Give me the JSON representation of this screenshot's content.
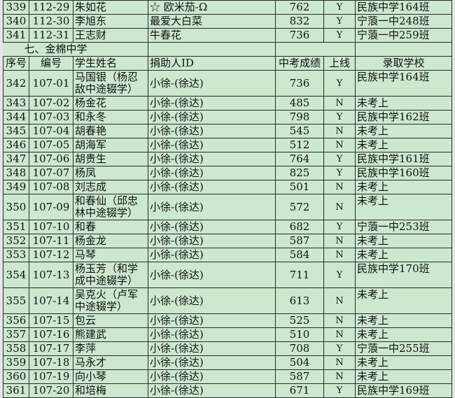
{
  "colors": {
    "cell_background": "#cce8cf",
    "grid_line": "#2a2a2a"
  },
  "rows_before": [
    {
      "no": "339",
      "code": "112-29",
      "name": "朱如花",
      "donor": "☆ 欧米茄-Ω",
      "score": "762",
      "passed": "Y",
      "school": "民族中学164班"
    },
    {
      "no": "340",
      "code": "112-30",
      "name": "李旭东",
      "donor": "最爱大白菜",
      "score": "832",
      "passed": "Y",
      "school": "宁蒗一中248班"
    },
    {
      "no": "341",
      "code": "112-31",
      "name": "王志财",
      "donor": "牛春花",
      "score": "736",
      "passed": "Y",
      "school": "宁蒗一中259班"
    }
  ],
  "section_title": "七、金棉中学",
  "headers": {
    "no": "序号",
    "code": "编号",
    "name": "学生姓名",
    "donor": "捐助人ID",
    "score": "中考成绩",
    "passed": "上线",
    "school": "录取学校"
  },
  "rows": [
    {
      "no": "342",
      "code": "107-01",
      "name": "马国银（杨忍敌中途辍学）",
      "donor": "小徐-(徐达)",
      "score": "736",
      "passed": "Y",
      "school": "民族中学164班",
      "tall": true
    },
    {
      "no": "343",
      "code": "107-02",
      "name": "杨金花",
      "donor": "小徐-(徐达)",
      "score": "485",
      "passed": "N",
      "school": "未考上"
    },
    {
      "no": "344",
      "code": "107-03",
      "name": "和永冬",
      "donor": "小徐-(徐达)",
      "score": "798",
      "passed": "Y",
      "school": "民族中学162班"
    },
    {
      "no": "345",
      "code": "107-04",
      "name": "胡春艳",
      "donor": "小徐-(徐达)",
      "score": "545",
      "passed": "N",
      "school": "未考上"
    },
    {
      "no": "346",
      "code": "107-05",
      "name": "胡海军",
      "donor": "小徐-(徐达)",
      "score": "512",
      "passed": "N",
      "school": "未考上"
    },
    {
      "no": "347",
      "code": "107-06",
      "name": "胡贵生",
      "donor": "小徐-(徐达)",
      "score": "764",
      "passed": "Y",
      "school": "民族中学161班"
    },
    {
      "no": "348",
      "code": "107-07",
      "name": "杨凤",
      "donor": "小徐-(徐达)",
      "score": "825",
      "passed": "Y",
      "school": "民族中学160班"
    },
    {
      "no": "349",
      "code": "107-08",
      "name": "刘志成",
      "donor": "小徐-(徐达)",
      "score": "501",
      "passed": "N",
      "school": "未考上"
    },
    {
      "no": "350",
      "code": "107-09",
      "name": "和春仙（邱忠林中途辍学）",
      "donor": "小徐-(徐达)",
      "score": "572",
      "passed": "N",
      "school": "未考上",
      "tall": true
    },
    {
      "no": "351",
      "code": "107-10",
      "name": "和春",
      "donor": "小徐-(徐达)",
      "score": "682",
      "passed": "Y",
      "school": "宁蒗一中253班"
    },
    {
      "no": "352",
      "code": "107-11",
      "name": "杨金龙",
      "donor": "小徐-(徐达)",
      "score": "587",
      "passed": "N",
      "school": "未考上"
    },
    {
      "no": "353",
      "code": "107-12",
      "name": "马琴",
      "donor": "小徐-(徐达)",
      "score": "584",
      "passed": "N",
      "school": "未考上"
    },
    {
      "no": "354",
      "code": "107-13",
      "name": "杨玉芳（和学成中途辍学）",
      "donor": "小徐-(徐达)",
      "score": "711",
      "passed": "Y",
      "school": "民族中学170班",
      "tall": true
    },
    {
      "no": "355",
      "code": "107-14",
      "name": "吴克火（卢军中途辍学）",
      "donor": "小徐-(徐达)",
      "score": "613",
      "passed": "N",
      "school": "未考上",
      "tall": true
    },
    {
      "no": "356",
      "code": "107-15",
      "name": "包云",
      "donor": "小徐-(徐达)",
      "score": "525",
      "passed": "N",
      "school": "未考上"
    },
    {
      "no": "357",
      "code": "107-16",
      "name": "熊建武",
      "donor": "小徐-(徐达)",
      "score": "510",
      "passed": "N",
      "school": "未考上"
    },
    {
      "no": "358",
      "code": "107-17",
      "name": "李萍",
      "donor": "小徐-(徐达)",
      "score": "708",
      "passed": "Y",
      "school": "宁蒗一中255班"
    },
    {
      "no": "359",
      "code": "107-18",
      "name": "马永才",
      "donor": "小徐-(徐达)",
      "score": "504",
      "passed": "N",
      "school": "未考上"
    },
    {
      "no": "360",
      "code": "107-19",
      "name": "向小琴",
      "donor": "小徐-(徐达)",
      "score": "587",
      "passed": "N",
      "school": "未考上"
    },
    {
      "no": "361",
      "code": "107-20",
      "name": "和培梅",
      "donor": "小徐-(徐达)",
      "score": "671",
      "passed": "Y",
      "school": "民族中学169班"
    }
  ]
}
